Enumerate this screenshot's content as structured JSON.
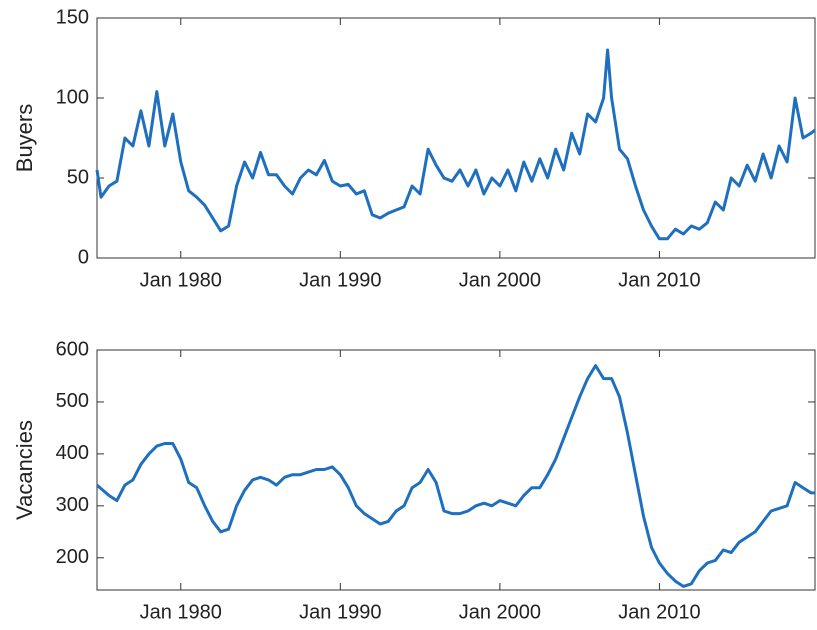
{
  "chart_data": [
    {
      "type": "line",
      "ylabel": "Buyers",
      "color": "#1f6fbf",
      "xlim": [
        "1974-10",
        "2019-10"
      ],
      "ylim": [
        0,
        150
      ],
      "yticks": [
        0,
        50,
        100,
        150
      ],
      "xticks": [
        {
          "value": "1980-01",
          "label": "Jan 1980"
        },
        {
          "value": "1990-01",
          "label": "Jan 1990"
        },
        {
          "value": "2000-01",
          "label": "Jan 2000"
        },
        {
          "value": "2010-01",
          "label": "Jan 2010"
        }
      ],
      "x": [
        "1974-10",
        "1975-01",
        "1975-07",
        "1976-01",
        "1976-07",
        "1977-01",
        "1977-07",
        "1978-01",
        "1978-07",
        "1979-01",
        "1979-07",
        "1980-01",
        "1980-07",
        "1981-01",
        "1981-07",
        "1982-01",
        "1982-07",
        "1983-01",
        "1983-07",
        "1984-01",
        "1984-07",
        "1985-01",
        "1985-07",
        "1986-01",
        "1986-07",
        "1987-01",
        "1987-07",
        "1988-01",
        "1988-07",
        "1989-01",
        "1989-07",
        "1990-01",
        "1990-07",
        "1991-01",
        "1991-07",
        "1992-01",
        "1992-07",
        "1993-01",
        "1993-07",
        "1994-01",
        "1994-07",
        "1995-01",
        "1995-07",
        "1996-01",
        "1996-07",
        "1997-01",
        "1997-07",
        "1998-01",
        "1998-07",
        "1999-01",
        "1999-07",
        "2000-01",
        "2000-07",
        "2001-01",
        "2001-07",
        "2002-01",
        "2002-07",
        "2003-01",
        "2003-07",
        "2004-01",
        "2004-07",
        "2005-01",
        "2005-07",
        "2006-01",
        "2006-07",
        "2006-10",
        "2007-01",
        "2007-07",
        "2008-01",
        "2008-07",
        "2009-01",
        "2009-07",
        "2010-01",
        "2010-07",
        "2011-01",
        "2011-07",
        "2012-01",
        "2012-07",
        "2013-01",
        "2013-07",
        "2014-01",
        "2014-07",
        "2015-01",
        "2015-07",
        "2016-01",
        "2016-07",
        "2017-01",
        "2017-07",
        "2018-01",
        "2018-07",
        "2019-01",
        "2019-07",
        "2019-10"
      ],
      "values": [
        55,
        38,
        45,
        48,
        75,
        70,
        92,
        70,
        104,
        70,
        90,
        60,
        42,
        38,
        33,
        25,
        17,
        20,
        45,
        60,
        50,
        66,
        52,
        52,
        45,
        40,
        50,
        55,
        52,
        61,
        48,
        45,
        46,
        40,
        42,
        27,
        25,
        28,
        30,
        32,
        45,
        40,
        68,
        58,
        50,
        48,
        55,
        45,
        55,
        40,
        50,
        45,
        55,
        42,
        60,
        48,
        62,
        50,
        68,
        55,
        78,
        65,
        90,
        85,
        100,
        130,
        100,
        68,
        62,
        45,
        30,
        20,
        12,
        12,
        18,
        15,
        20,
        18,
        22,
        35,
        30,
        50,
        45,
        58,
        48,
        65,
        50,
        70,
        60,
        100,
        75,
        78,
        80
      ]
    },
    {
      "type": "line",
      "ylabel": "Vacancies",
      "color": "#1f6fbf",
      "xlim": [
        "1974-10",
        "2019-10"
      ],
      "ylim": [
        138,
        600
      ],
      "yticks": [
        200,
        300,
        400,
        500,
        600
      ],
      "xticks": [
        {
          "value": "1980-01",
          "label": "Jan 1980"
        },
        {
          "value": "1990-01",
          "label": "Jan 1990"
        },
        {
          "value": "2000-01",
          "label": "Jan 2000"
        },
        {
          "value": "2010-01",
          "label": "Jan 2010"
        }
      ],
      "x": [
        "1974-10",
        "1975-07",
        "1976-01",
        "1976-07",
        "1977-01",
        "1977-07",
        "1978-01",
        "1978-07",
        "1979-01",
        "1979-07",
        "1980-01",
        "1980-07",
        "1981-01",
        "1981-07",
        "1982-01",
        "1982-07",
        "1983-01",
        "1983-07",
        "1984-01",
        "1984-07",
        "1985-01",
        "1985-07",
        "1986-01",
        "1986-07",
        "1987-01",
        "1987-07",
        "1988-01",
        "1988-07",
        "1989-01",
        "1989-07",
        "1990-01",
        "1990-07",
        "1991-01",
        "1991-07",
        "1992-01",
        "1992-07",
        "1993-01",
        "1993-07",
        "1994-01",
        "1994-07",
        "1995-01",
        "1995-07",
        "1996-01",
        "1996-07",
        "1997-01",
        "1997-07",
        "1998-01",
        "1998-07",
        "1999-01",
        "1999-07",
        "2000-01",
        "2000-07",
        "2001-01",
        "2001-07",
        "2002-01",
        "2002-07",
        "2003-01",
        "2003-07",
        "2004-01",
        "2004-07",
        "2005-01",
        "2005-07",
        "2006-01",
        "2006-07",
        "2007-01",
        "2007-07",
        "2008-01",
        "2008-07",
        "2009-01",
        "2009-07",
        "2010-01",
        "2010-07",
        "2011-01",
        "2011-07",
        "2012-01",
        "2012-07",
        "2013-01",
        "2013-07",
        "2014-01",
        "2014-07",
        "2015-01",
        "2015-07",
        "2016-01",
        "2016-07",
        "2017-01",
        "2017-07",
        "2018-01",
        "2018-07",
        "2019-01",
        "2019-07",
        "2019-10"
      ],
      "values": [
        340,
        320,
        310,
        340,
        350,
        380,
        400,
        415,
        420,
        420,
        390,
        345,
        335,
        300,
        270,
        250,
        255,
        300,
        330,
        350,
        355,
        350,
        340,
        355,
        360,
        360,
        365,
        370,
        370,
        375,
        360,
        335,
        300,
        285,
        275,
        265,
        270,
        290,
        300,
        335,
        345,
        370,
        345,
        290,
        285,
        285,
        290,
        300,
        305,
        300,
        310,
        305,
        300,
        320,
        335,
        335,
        360,
        390,
        430,
        470,
        510,
        545,
        570,
        545,
        545,
        510,
        440,
        360,
        280,
        220,
        190,
        170,
        155,
        145,
        150,
        175,
        190,
        195,
        215,
        210,
        230,
        240,
        250,
        270,
        290,
        295,
        300,
        345,
        335,
        325,
        325
      ]
    }
  ]
}
